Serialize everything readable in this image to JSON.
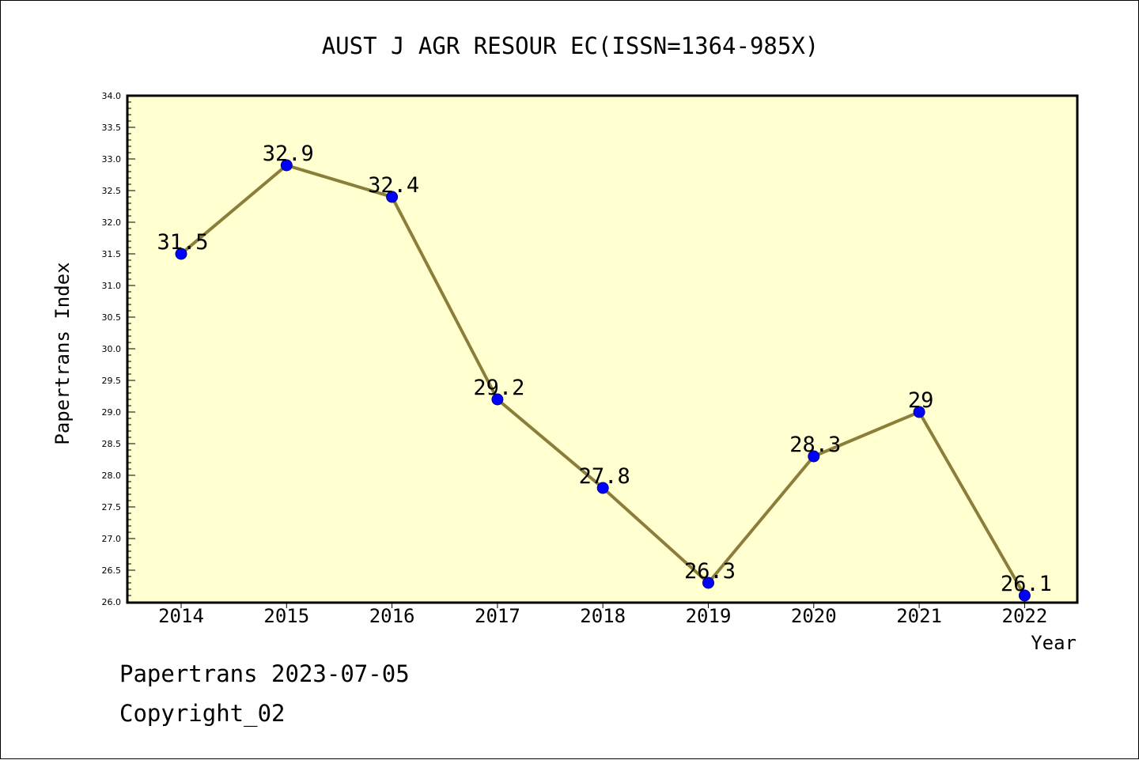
{
  "chart_data": {
    "type": "line",
    "title": "AUST J AGR RESOUR EC(ISSN=1364-985X)",
    "xlabel": "Year",
    "ylabel": "Papertrans Index",
    "categories": [
      "2014",
      "2015",
      "2016",
      "2017",
      "2018",
      "2019",
      "2020",
      "2021",
      "2022"
    ],
    "values": [
      31.5,
      32.9,
      32.4,
      29.2,
      27.8,
      26.3,
      28.3,
      29,
      26.1
    ],
    "value_labels": [
      "31.5",
      "32.9",
      "32.4",
      "29.2",
      "27.8",
      "26.3",
      "28.3",
      "29",
      "26.1"
    ],
    "ylim": [
      26.0,
      34.0
    ],
    "y_ticks": [
      "26.0",
      "26.5",
      "27.0",
      "27.5",
      "28.0",
      "28.5",
      "29.0",
      "29.5",
      "30.0",
      "30.5",
      "31.0",
      "31.5",
      "32.0",
      "32.5",
      "33.0",
      "33.5",
      "34.0"
    ],
    "grid": false,
    "legend": "none",
    "colors": {
      "plot_background": "#FFFFD0",
      "line": "#8B7E3A",
      "marker": "#0000FF",
      "marker_edge": "#000080",
      "axis": "#000000"
    }
  },
  "footer": {
    "line1": "Papertrans 2023-07-05",
    "line2": "Copyright_02"
  }
}
